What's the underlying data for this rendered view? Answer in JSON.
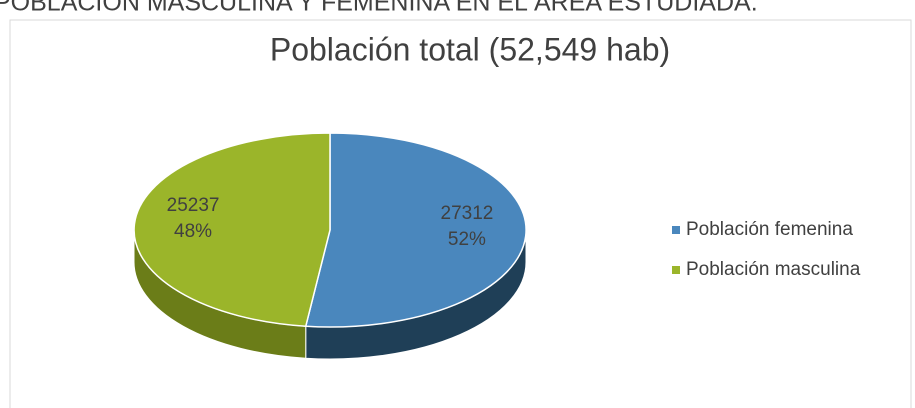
{
  "heading": "POBLACIÓN MASCULINA Y FEMENINA EN EL ÁREA ESTUDIADA.",
  "chart_data": {
    "type": "pie3d",
    "title": "Población total (52,549 hab)",
    "categories": [
      "Población femenina",
      "Población masculina"
    ],
    "series": [
      {
        "name": "Población",
        "values": [
          27312,
          25237
        ],
        "percent_labels": [
          "52%",
          "48%"
        ],
        "colors": [
          "#4a87bd",
          "#9bb52a"
        ],
        "side_colors": [
          "#1f3f57",
          "#6b7d18"
        ]
      }
    ],
    "legend": "right"
  }
}
